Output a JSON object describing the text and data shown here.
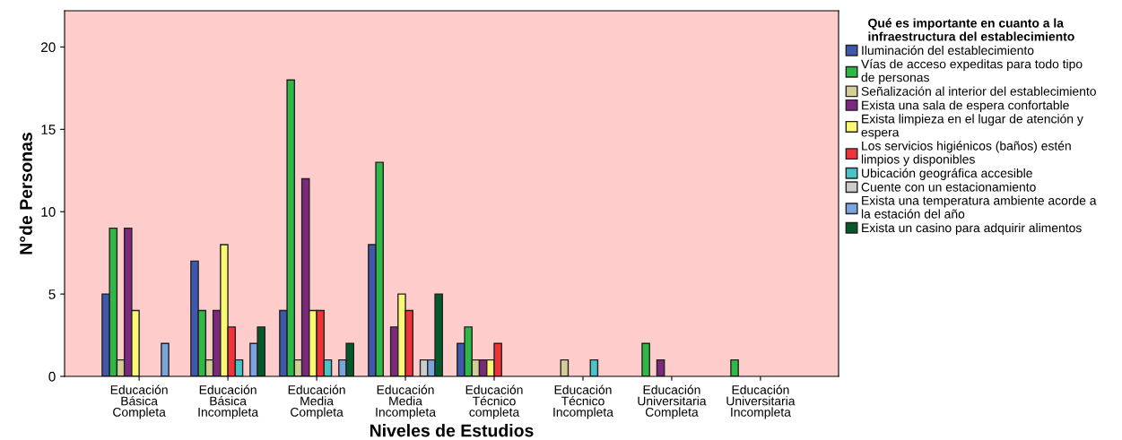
{
  "chart_data": {
    "type": "bar",
    "xlabel": "Niveles de Estudios",
    "ylabel": "N°de Personas",
    "legend_title": "Qué es importante en cuanto a la\ninfraestructura del establecimiento",
    "categories": [
      "Educación\nBásica\nCompleta",
      "Educación\nBásica\nIncompleta",
      "Educación\nMedia\nCompleta",
      "Educación\nMedia\nIncompleta",
      "Educación\nTécnico\ncompleta",
      "Educación\nTécnico\nIncompleta",
      "Educación\nUniversitaria\nCompleta",
      "Educación\nUniversitaria\nIncompleta"
    ],
    "series": [
      {
        "name": "Iluminación del establecimiento",
        "color": "#3e58ac",
        "values": [
          5,
          7,
          4,
          8,
          2,
          null,
          null,
          null
        ]
      },
      {
        "name": "Vías de acceso expeditas para todo tipo\nde personas",
        "color": "#2eb848",
        "values": [
          9,
          4,
          18,
          13,
          3,
          null,
          2,
          1
        ]
      },
      {
        "name": "Señalización al interior del establecimiento",
        "color": "#d3ce97",
        "values": [
          1,
          1,
          1,
          null,
          1,
          1,
          null,
          null
        ]
      },
      {
        "name": "Exista una sala de espera confortable",
        "color": "#7b287d",
        "values": [
          9,
          4,
          12,
          3,
          1,
          null,
          1,
          null
        ]
      },
      {
        "name": "Exista limpieza en el lugar de atención y\nespera",
        "color": "#fbf873",
        "values": [
          4,
          8,
          4,
          5,
          1,
          null,
          null,
          null
        ]
      },
      {
        "name": "Los servicios higiénicos (baños) estén\nlimpios y disponibles",
        "color": "#ef3338",
        "values": [
          null,
          3,
          4,
          4,
          2,
          null,
          null,
          null
        ]
      },
      {
        "name": "Ubicación geográfica accesible",
        "color": "#48c4c8",
        "values": [
          null,
          1,
          1,
          null,
          null,
          1,
          null,
          null
        ]
      },
      {
        "name": "Cuente con un estacionamiento",
        "color": "#cccccc",
        "values": [
          null,
          null,
          null,
          1,
          null,
          null,
          null,
          null
        ]
      },
      {
        "name": "Exista una temperatura ambiente acorde a\nla estación del año",
        "color": "#7ba4dd",
        "values": [
          2,
          2,
          1,
          1,
          null,
          null,
          null,
          null
        ]
      },
      {
        "name": "Exista un casino para adquirir alimentos",
        "color": "#04592a",
        "values": [
          null,
          3,
          2,
          5,
          null,
          null,
          null,
          null
        ]
      }
    ],
    "ylim": [
      0,
      22.2
    ],
    "yticks": [
      0,
      5,
      10,
      15,
      20
    ],
    "grid": false,
    "legend": "right"
  }
}
